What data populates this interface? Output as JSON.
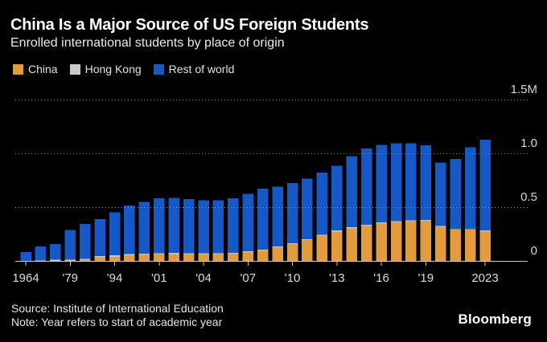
{
  "header": {
    "title": "China Is a Major Source of US Foreign Students",
    "subtitle": "Enrolled international students by place of origin"
  },
  "legend": {
    "items": [
      {
        "label": "China",
        "color": "#E39C3B"
      },
      {
        "label": "Hong Kong",
        "color": "#C9C9C9"
      },
      {
        "label": "Rest of world",
        "color": "#1558C8"
      }
    ]
  },
  "chart_data": {
    "type": "bar",
    "stacked": true,
    "title": "China Is a Major Source of US Foreign Students",
    "subtitle": "Enrolled international students by place of origin",
    "unit": "millions of students",
    "ylim": [
      0,
      1.5
    ],
    "grid": "horizontal-dotted",
    "legend_position": "top-left",
    "x": [
      1964,
      1969,
      1974,
      1979,
      1984,
      1989,
      1994,
      1999,
      2000,
      2001,
      2002,
      2003,
      2004,
      2005,
      2006,
      2007,
      2008,
      2009,
      2010,
      2011,
      2012,
      2013,
      2014,
      2015,
      2016,
      2017,
      2018,
      2019,
      2020,
      2021,
      2022,
      2023
    ],
    "series": [
      {
        "name": "China",
        "color": "#E39C3B",
        "values": [
          0,
          0,
          0,
          0.003,
          0.01,
          0.033,
          0.039,
          0.054,
          0.06,
          0.063,
          0.065,
          0.062,
          0.063,
          0.063,
          0.068,
          0.081,
          0.098,
          0.128,
          0.158,
          0.194,
          0.236,
          0.274,
          0.304,
          0.329,
          0.351,
          0.363,
          0.37,
          0.373,
          0.317,
          0.29,
          0.29,
          0.277
        ]
      },
      {
        "name": "Hong Kong",
        "color": "#C9C9C9",
        "values": [
          0.001,
          0.003,
          0.011,
          0.01,
          0.01,
          0.011,
          0.013,
          0.008,
          0.008,
          0.008,
          0.008,
          0.008,
          0.008,
          0.008,
          0.008,
          0.008,
          0.008,
          0.008,
          0.008,
          0.008,
          0.008,
          0.008,
          0.008,
          0.008,
          0.007,
          0.007,
          0.007,
          0.007,
          0.006,
          0.006,
          0.006,
          0.006
        ]
      },
      {
        "name": "Rest of world",
        "color": "#1558C8",
        "values": [
          0.081,
          0.132,
          0.144,
          0.273,
          0.322,
          0.343,
          0.401,
          0.453,
          0.48,
          0.512,
          0.513,
          0.503,
          0.494,
          0.494,
          0.507,
          0.535,
          0.566,
          0.555,
          0.557,
          0.562,
          0.576,
          0.604,
          0.663,
          0.707,
          0.721,
          0.725,
          0.718,
          0.695,
          0.591,
          0.653,
          0.761,
          0.844
        ]
      }
    ],
    "y_ticks": [
      {
        "label": "0",
        "value": 0
      },
      {
        "label": "0.5",
        "value": 0.5
      },
      {
        "label": "1.0",
        "value": 1.0
      },
      {
        "label": "1.5M",
        "value": 1.5
      }
    ],
    "x_ticks": [
      {
        "label": "1964",
        "index": 0
      },
      {
        "label": "'79",
        "index": 3
      },
      {
        "label": "'94",
        "index": 6
      },
      {
        "label": "'01",
        "index": 9
      },
      {
        "label": "'04",
        "index": 12
      },
      {
        "label": "'07",
        "index": 15
      },
      {
        "label": "'10",
        "index": 18
      },
      {
        "label": "'13",
        "index": 21
      },
      {
        "label": "'16",
        "index": 24
      },
      {
        "label": "'19",
        "index": 27
      },
      {
        "label": "2023",
        "index": 31
      }
    ]
  },
  "footer": {
    "source": "Source: Institute of International Education",
    "note": "Note: Year refers to start of academic year",
    "logo": "Bloomberg"
  }
}
